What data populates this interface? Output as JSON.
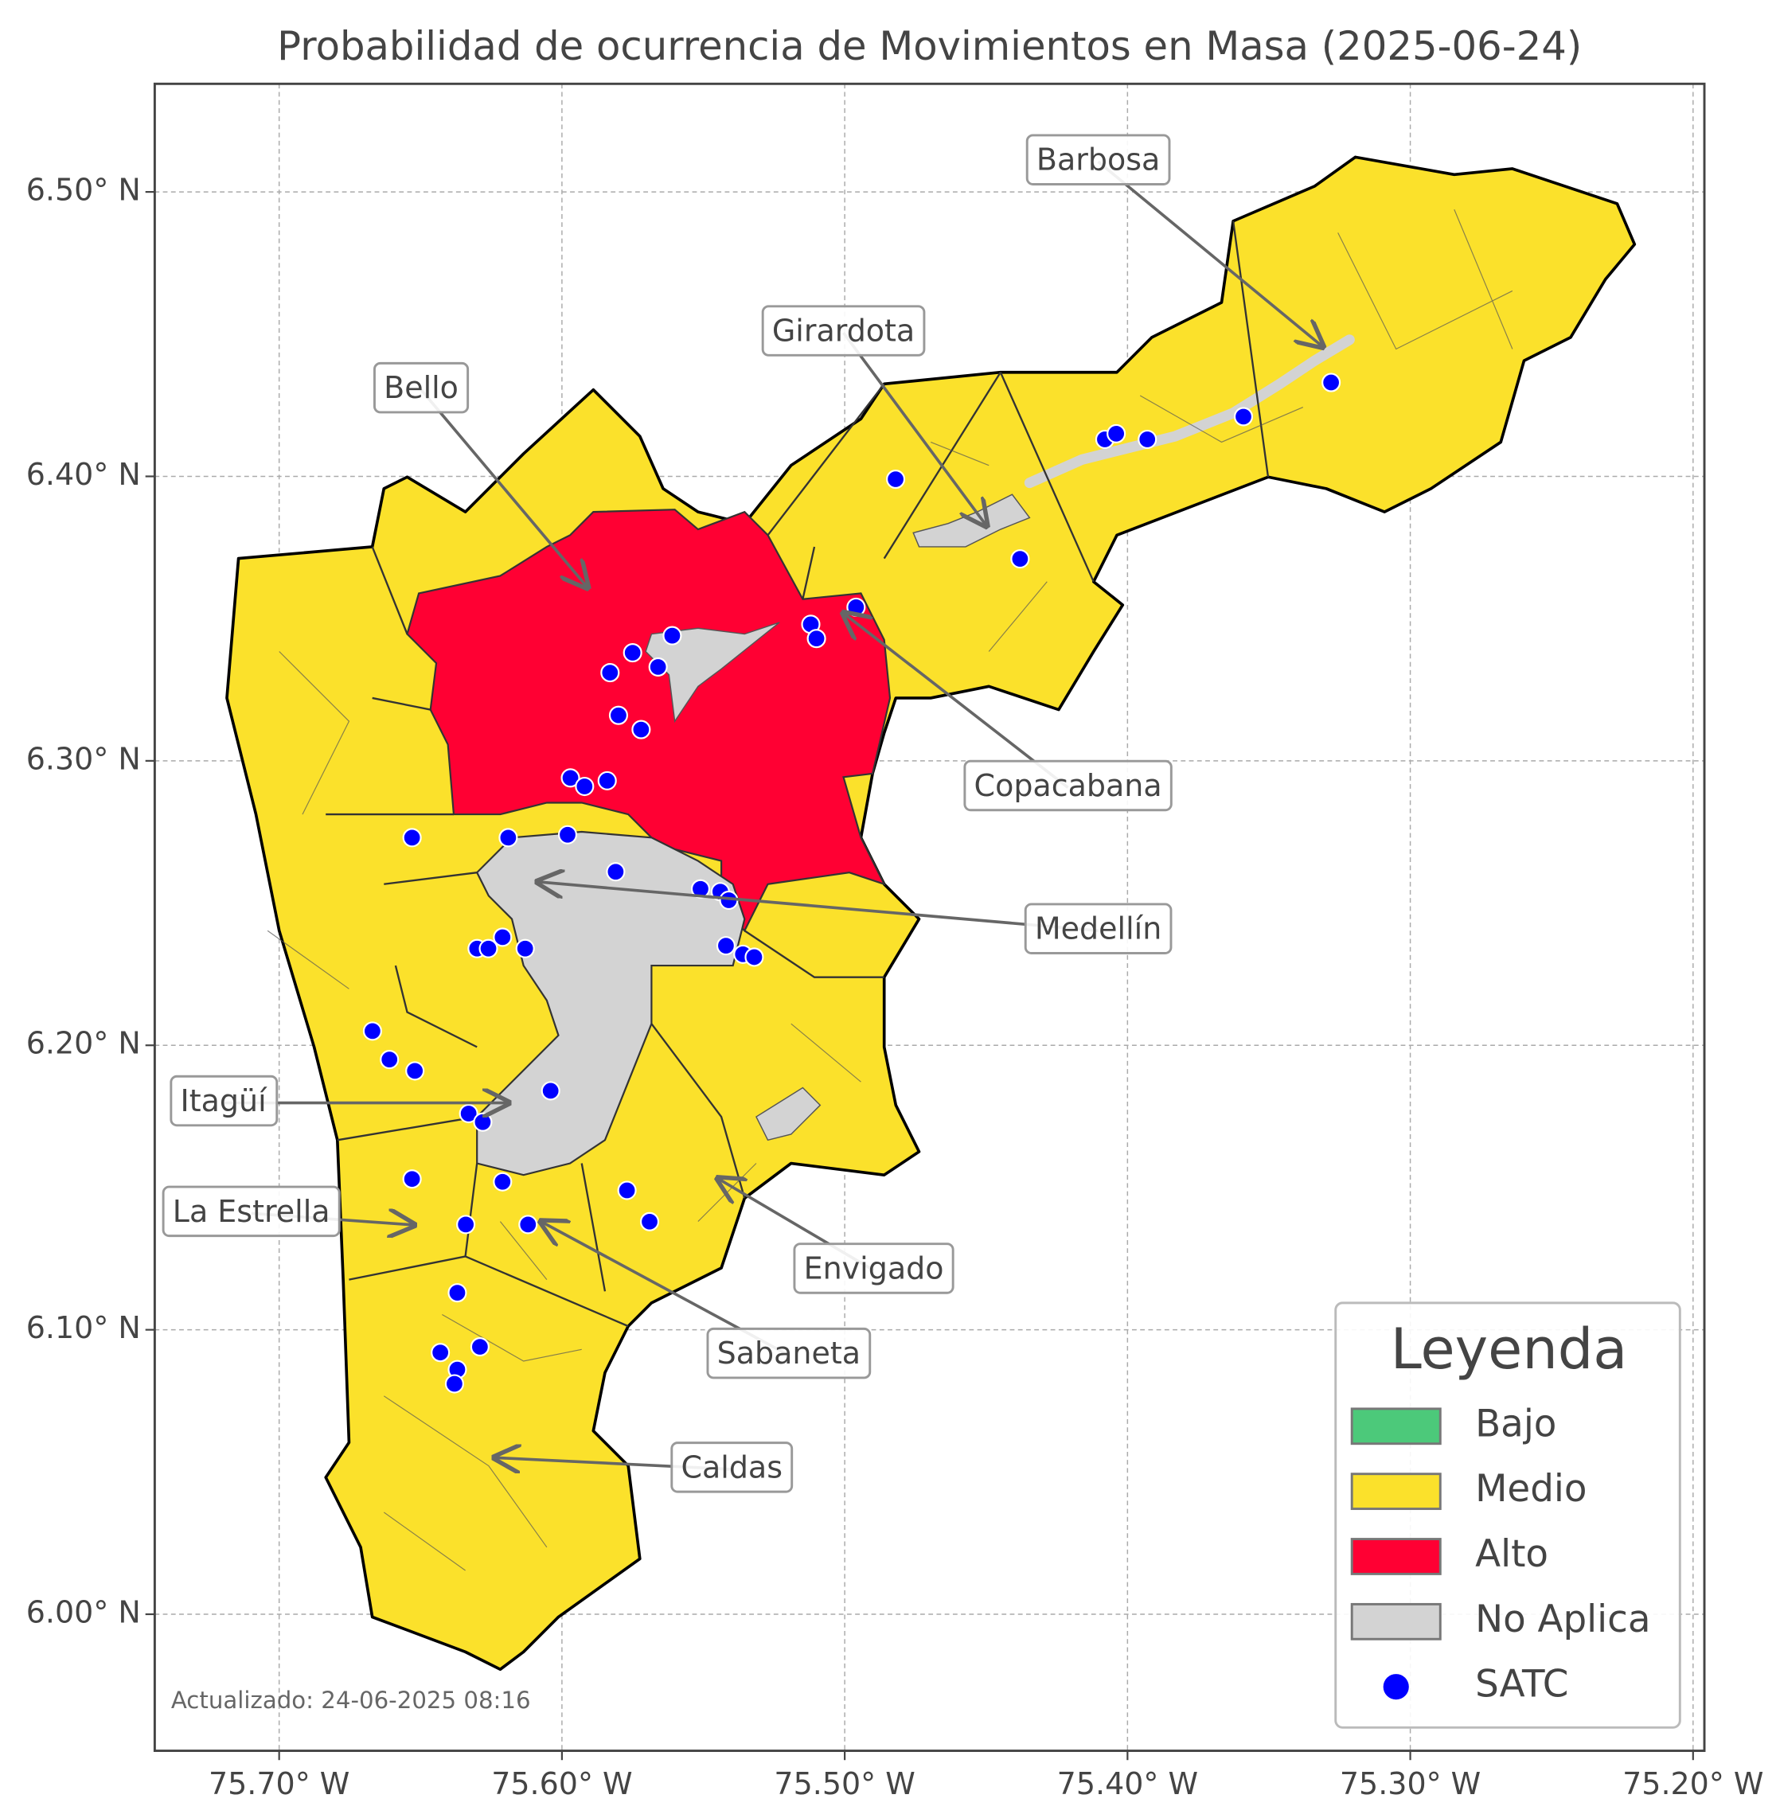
{
  "chart_data": {
    "type": "map",
    "title": "Probabilidad de ocurrencia de Movimientos en Masa (2025-06-24)",
    "xlim": [
      -75.744,
      -75.196
    ],
    "ylim": [
      5.952,
      6.538
    ],
    "xticks": [
      {
        "value": -75.7,
        "label": "75.70° W"
      },
      {
        "value": -75.6,
        "label": "75.60° W"
      },
      {
        "value": -75.5,
        "label": "75.50° W"
      },
      {
        "value": -75.4,
        "label": "75.40° W"
      },
      {
        "value": -75.3,
        "label": "75.30° W"
      },
      {
        "value": -75.2,
        "label": "75.20° W"
      }
    ],
    "yticks": [
      {
        "value": 6.0,
        "label": "6.00° N"
      },
      {
        "value": 6.1,
        "label": "6.10° N"
      },
      {
        "value": 6.2,
        "label": "6.20° N"
      },
      {
        "value": 6.3,
        "label": "6.30° N"
      },
      {
        "value": 6.4,
        "label": "6.40° N"
      },
      {
        "value": 6.5,
        "label": "6.50° N"
      }
    ],
    "grid": true,
    "categories": [
      {
        "name": "Bajo",
        "color": "#4cc97a"
      },
      {
        "name": "Medio",
        "color": "#fbe12b"
      },
      {
        "name": "Alto",
        "color": "#ff0033"
      },
      {
        "name": "No Aplica",
        "color": "#d3d3d3"
      }
    ],
    "series": [
      {
        "name": "SATC",
        "color": "#0000ff",
        "x": [
          -75.482,
          -75.408,
          -75.404,
          -75.393,
          -75.359,
          -75.328,
          -75.438,
          -75.496,
          -75.512,
          -75.51,
          -75.561,
          -75.575,
          -75.566,
          -75.583,
          -75.58,
          -75.572,
          -75.597,
          -75.592,
          -75.584,
          -75.653,
          -75.619,
          -75.598,
          -75.581,
          -75.551,
          -75.544,
          -75.541,
          -75.542,
          -75.536,
          -75.532,
          -75.621,
          -75.63,
          -75.626,
          -75.613,
          -75.667,
          -75.661,
          -75.652,
          -75.604,
          -75.633,
          -75.628,
          -75.653,
          -75.621,
          -75.577,
          -75.569,
          -75.634,
          -75.612,
          -75.637,
          -75.643,
          -75.629,
          -75.637,
          -75.638
        ],
        "y": [
          6.399,
          6.413,
          6.415,
          6.413,
          6.421,
          6.433,
          6.371,
          6.354,
          6.348,
          6.343,
          6.344,
          6.338,
          6.333,
          6.331,
          6.316,
          6.311,
          6.294,
          6.291,
          6.293,
          6.273,
          6.273,
          6.274,
          6.261,
          6.255,
          6.254,
          6.251,
          6.235,
          6.232,
          6.231,
          6.238,
          6.234,
          6.234,
          6.234,
          6.205,
          6.195,
          6.191,
          6.184,
          6.176,
          6.173,
          6.153,
          6.152,
          6.149,
          6.138,
          6.137,
          6.137,
          6.113,
          6.092,
          6.094,
          6.086,
          6.081
        ]
      }
    ],
    "legend": {
      "title": "Leyenda",
      "position": "lower right"
    },
    "annotations": [
      {
        "text": "Barbosa"
      },
      {
        "text": "Girardota"
      },
      {
        "text": "Bello"
      },
      {
        "text": "Copacabana"
      },
      {
        "text": "Medellín"
      },
      {
        "text": "Itagüí"
      },
      {
        "text": "La Estrella"
      },
      {
        "text": "Envigado"
      },
      {
        "text": "Sabaneta"
      },
      {
        "text": "Caldas"
      }
    ],
    "note": "Actualizado: 24-06-2025 08:16"
  }
}
